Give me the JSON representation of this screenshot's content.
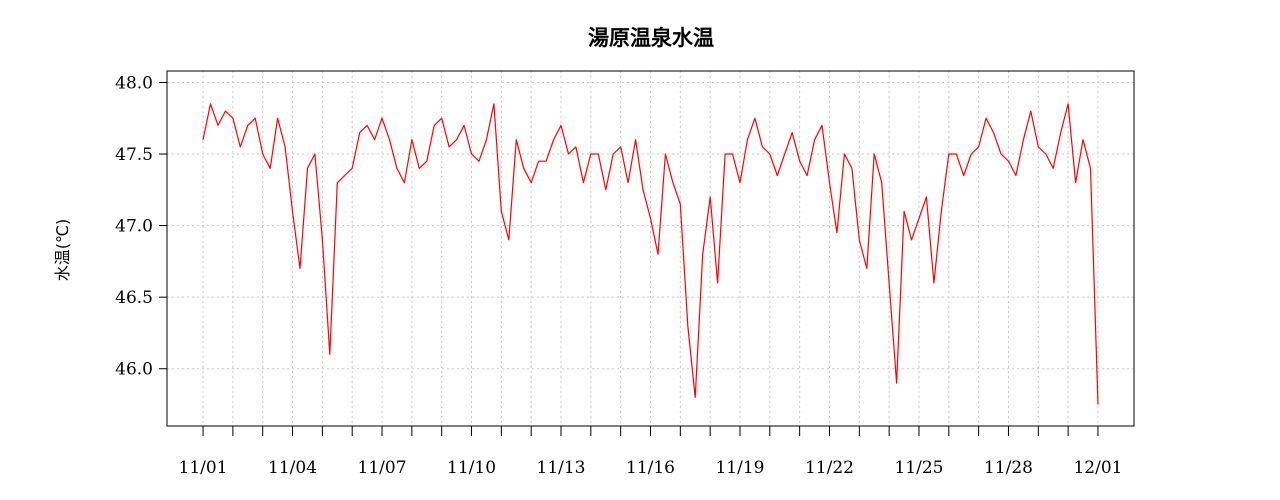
{
  "chart_data": {
    "type": "line",
    "title": "湯原温泉水温",
    "xlabel": "",
    "ylabel": "水温(℃)",
    "ylim": [
      45.6,
      48.08
    ],
    "xlim": [
      "2023-10-30T19:00",
      "2023-12-02T05:00"
    ],
    "grid": true,
    "y_ticks": [
      48.0,
      47.5,
      47.0,
      46.5,
      46.0
    ],
    "y_tick_labels": [
      "48.0",
      "47.5",
      "47.0",
      "46.5",
      "46.0"
    ],
    "x_ticks": [
      "11/01",
      "11/02",
      "11/03",
      "11/04",
      "11/05",
      "11/06",
      "11/07",
      "11/08",
      "11/09",
      "11/10",
      "11/11",
      "11/12",
      "11/13",
      "11/14",
      "11/15",
      "11/16",
      "11/17",
      "11/18",
      "11/19",
      "11/20",
      "11/21",
      "11/22",
      "11/23",
      "11/24",
      "11/25",
      "11/26",
      "11/27",
      "11/28",
      "11/29",
      "11/30",
      "12/01"
    ],
    "x_tick_labels": [
      "11/01",
      "11/04",
      "11/07",
      "11/10",
      "11/13",
      "11/16",
      "11/19",
      "11/22",
      "11/25",
      "11/28",
      "12/01"
    ],
    "series": [
      {
        "color": "#ff0000",
        "x": [
          "11/01 00:00",
          "11/01 06:00",
          "11/01 12:00",
          "11/01 18:00",
          "11/02 00:00",
          "11/02 06:00",
          "11/02 12:00",
          "11/02 18:00",
          "11/03 00:00",
          "11/03 06:00",
          "11/03 12:00",
          "11/03 18:00",
          "11/04 00:00",
          "11/04 06:00",
          "11/04 12:00",
          "11/04 18:00",
          "11/05 00:00",
          "11/05 06:00",
          "11/05 12:00",
          "11/05 18:00",
          "11/06 00:00",
          "11/06 06:00",
          "11/06 12:00",
          "11/06 18:00",
          "11/07 00:00",
          "11/07 06:00",
          "11/07 12:00",
          "11/07 18:00",
          "11/08 00:00",
          "11/08 06:00",
          "11/08 12:00",
          "11/08 18:00",
          "11/09 00:00",
          "11/09 06:00",
          "11/09 12:00",
          "11/09 18:00",
          "11/10 00:00",
          "11/10 06:00",
          "11/10 12:00",
          "11/10 18:00",
          "11/11 00:00",
          "11/11 06:00",
          "11/11 12:00",
          "11/11 18:00",
          "11/12 00:00",
          "11/12 06:00",
          "11/12 12:00",
          "11/12 18:00",
          "11/13 00:00",
          "11/13 06:00",
          "11/13 12:00",
          "11/13 18:00",
          "11/14 00:00",
          "11/14 06:00",
          "11/14 12:00",
          "11/14 18:00",
          "11/15 00:00",
          "11/15 06:00",
          "11/15 12:00",
          "11/15 18:00",
          "11/16 00:00",
          "11/16 06:00",
          "11/16 12:00",
          "11/16 18:00",
          "11/17 00:00",
          "11/17 06:00",
          "11/17 12:00",
          "11/17 18:00",
          "11/18 00:00",
          "11/18 06:00",
          "11/18 12:00",
          "11/18 18:00",
          "11/19 00:00",
          "11/19 06:00",
          "11/19 12:00",
          "11/19 18:00",
          "11/20 00:00",
          "11/20 06:00",
          "11/20 12:00",
          "11/20 18:00",
          "11/21 00:00",
          "11/21 06:00",
          "11/21 12:00",
          "11/21 18:00",
          "11/22 00:00",
          "11/22 06:00",
          "11/22 12:00",
          "11/22 18:00",
          "11/23 00:00",
          "11/23 06:00",
          "11/23 12:00",
          "11/23 18:00",
          "11/24 00:00",
          "11/24 06:00",
          "11/24 12:00",
          "11/24 18:00",
          "11/25 00:00",
          "11/25 06:00",
          "11/25 12:00",
          "11/25 18:00",
          "11/26 00:00",
          "11/26 06:00",
          "11/26 12:00",
          "11/26 18:00",
          "11/27 00:00",
          "11/27 06:00",
          "11/27 12:00",
          "11/27 18:00",
          "11/28 00:00",
          "11/28 06:00",
          "11/28 12:00",
          "11/28 18:00",
          "11/29 00:00",
          "11/29 06:00",
          "11/29 12:00",
          "11/29 18:00",
          "11/30 00:00",
          "11/30 06:00",
          "11/30 12:00",
          "11/30 18:00",
          "12/01 00:00"
        ],
        "y": [
          47.6,
          47.85,
          47.7,
          47.8,
          47.75,
          47.55,
          47.7,
          47.75,
          47.5,
          47.4,
          47.75,
          47.55,
          47.1,
          46.7,
          47.4,
          47.5,
          46.9,
          46.1,
          47.3,
          47.35,
          47.4,
          47.65,
          47.7,
          47.6,
          47.75,
          47.6,
          47.4,
          47.3,
          47.6,
          47.4,
          47.45,
          47.7,
          47.75,
          47.55,
          47.6,
          47.7,
          47.5,
          47.45,
          47.6,
          47.85,
          47.1,
          46.9,
          47.6,
          47.4,
          47.3,
          47.45,
          47.45,
          47.6,
          47.7,
          47.5,
          47.55,
          47.3,
          47.5,
          47.5,
          47.25,
          47.5,
          47.55,
          47.3,
          47.6,
          47.25,
          47.05,
          46.8,
          47.5,
          47.3,
          47.15,
          46.3,
          45.8,
          46.8,
          47.2,
          46.6,
          47.5,
          47.5,
          47.3,
          47.6,
          47.75,
          47.55,
          47.5,
          47.35,
          47.5,
          47.65,
          47.45,
          47.35,
          47.6,
          47.7,
          47.3,
          46.95,
          47.5,
          47.4,
          46.9,
          46.7,
          47.5,
          47.3,
          46.6,
          45.9,
          47.1,
          46.9,
          47.05,
          47.2,
          46.6,
          47.1,
          47.5,
          47.5,
          47.35,
          47.5,
          47.55,
          47.75,
          47.65,
          47.5,
          47.45,
          47.35,
          47.6,
          47.8,
          47.55,
          47.5,
          47.4,
          47.65,
          47.85,
          47.3,
          47.6,
          47.4,
          45.75
        ]
      }
    ]
  }
}
